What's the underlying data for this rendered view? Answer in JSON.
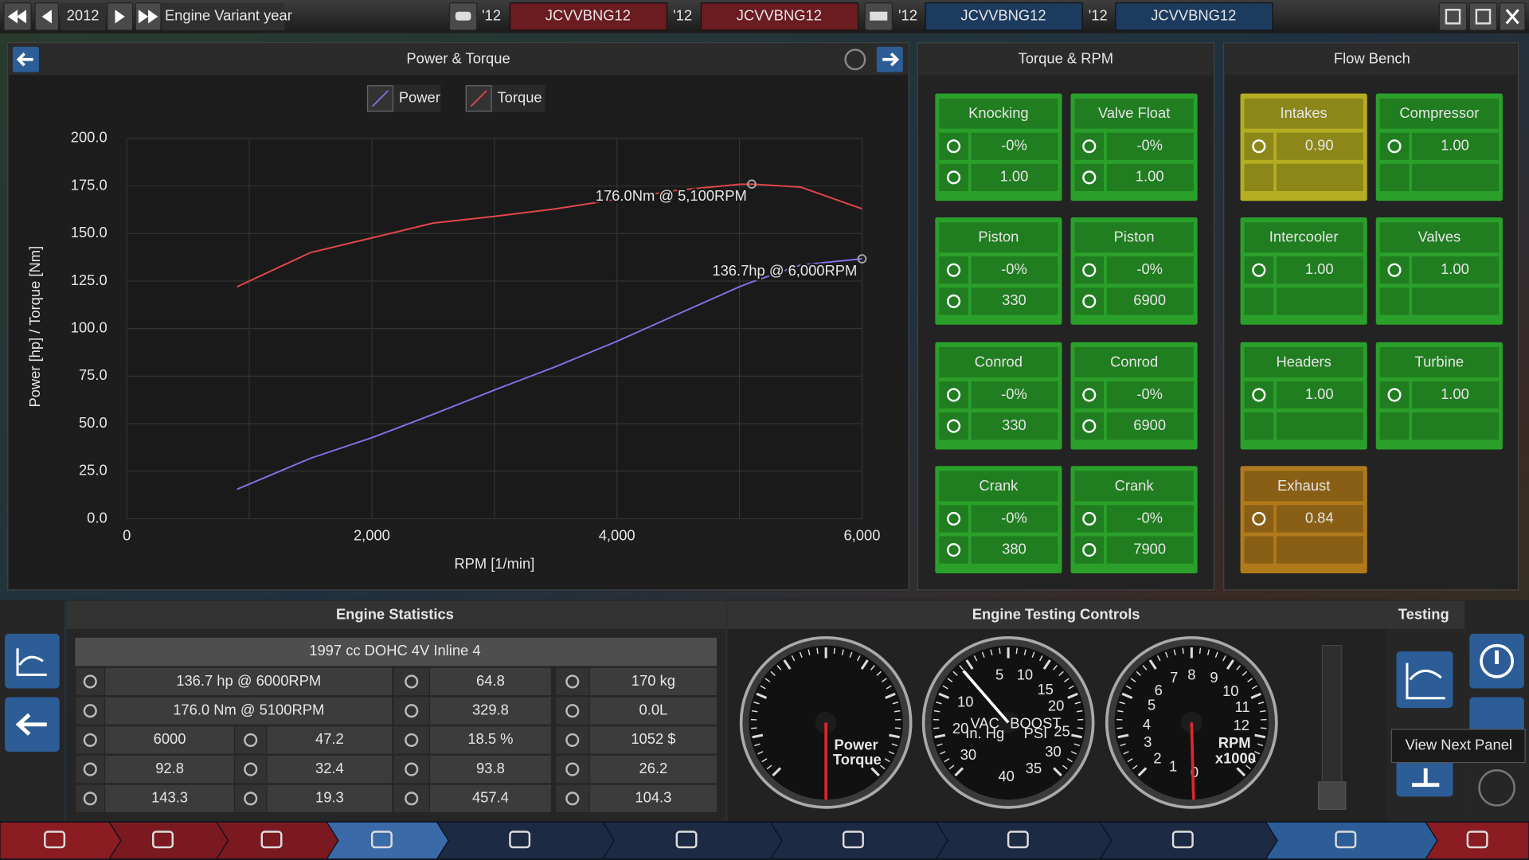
{
  "top_bar": {
    "year": "2012",
    "variant_label": "Engine Variant year",
    "slots": [
      {
        "year": "'12",
        "name": "JCVVBNG12",
        "color": "#6b1c21"
      },
      {
        "year": "'12",
        "name": "JCVVBNG12",
        "color": "#6b1c21"
      },
      {
        "year": "'12",
        "name": "JCVVBNG12",
        "color": "#1d3b5f"
      },
      {
        "year": "'12",
        "name": "JCVVBNG12",
        "color": "#1d3b5f"
      }
    ]
  },
  "chart_data": {
    "type": "line",
    "title": "Power & Torque",
    "x_label": "RPM [1/min]",
    "y_label": "Power [hp] / Torque [Nm]",
    "x": [
      900,
      1500,
      2000,
      2500,
      3000,
      3500,
      4000,
      4500,
      5000,
      5100,
      5500,
      6000
    ],
    "series": [
      {
        "name": "Power",
        "color": "#7d72e6",
        "values": [
          15.5,
          31.8,
          42.6,
          54.9,
          67.7,
          80.0,
          93.3,
          107.7,
          122.0,
          124.5,
          133.5,
          136.7
        ]
      },
      {
        "name": "Torque",
        "color": "#e2464b",
        "values": [
          122.0,
          140.0,
          147.7,
          155.5,
          159.0,
          163.0,
          168.0,
          172.8,
          175.9,
          176.0,
          174.4,
          163.0
        ]
      }
    ],
    "xlim": [
      0,
      6000
    ],
    "ylim": [
      0,
      200
    ],
    "xticks": [
      0,
      {
        "value": 2000,
        "label": "2,000"
      },
      {
        "value": 4000,
        "label": "4,000"
      },
      {
        "value": 6000,
        "label": "6,000"
      }
    ],
    "xminor": [
      1000,
      3000,
      5000
    ],
    "yticks": [
      {
        "value": 0,
        "label": "0.0"
      },
      {
        "value": 25,
        "label": "25.0"
      },
      {
        "value": 50,
        "label": "50.0"
      },
      {
        "value": 75,
        "label": "75.0"
      },
      {
        "value": 100,
        "label": "100.0"
      },
      {
        "value": 125,
        "label": "125.0"
      },
      {
        "value": 150,
        "label": "150.0"
      },
      {
        "value": 175,
        "label": "175.0"
      },
      {
        "value": 200,
        "label": "200.0"
      }
    ],
    "grid": true,
    "annotations": [
      {
        "text": "176.0Nm @ 5,100RPM",
        "x": 5100,
        "y": 176.0,
        "color": "#e2464b"
      },
      {
        "text": "136.7hp @ 6,000RPM",
        "x": 6000,
        "y": 136.7,
        "color": "#8e86ee"
      }
    ]
  },
  "torque_rpm": {
    "title": "Torque & RPM",
    "card_color": "#2aa02a",
    "cards": [
      {
        "title": "Knocking",
        "values": [
          "-0%",
          "1.00"
        ]
      },
      {
        "title": "Valve Float",
        "values": [
          "-0%",
          "1.00"
        ]
      },
      {
        "title": "Piston",
        "values": [
          "-0%",
          "330"
        ]
      },
      {
        "title": "Piston",
        "values": [
          "-0%",
          "6900"
        ]
      },
      {
        "title": "Conrod",
        "values": [
          "-0%",
          "330"
        ]
      },
      {
        "title": "Conrod",
        "values": [
          "-0%",
          "6900"
        ]
      },
      {
        "title": "Crank",
        "values": [
          "-0%",
          "380"
        ]
      },
      {
        "title": "Crank",
        "values": [
          "-0%",
          "7900"
        ]
      }
    ]
  },
  "flow_bench": {
    "title": "Flow Bench",
    "cards": [
      {
        "title": "Intakes",
        "value": "0.90",
        "color": "#b5ad22"
      },
      {
        "title": "Compressor",
        "value": "1.00",
        "color": "#2aa02a"
      },
      {
        "title": "Intercooler",
        "value": "1.00",
        "color": "#2aa02a"
      },
      {
        "title": "Valves",
        "value": "1.00",
        "color": "#2aa02a"
      },
      {
        "title": "Headers",
        "value": "1.00",
        "color": "#2aa02a"
      },
      {
        "title": "Turbine",
        "value": "1.00",
        "color": "#2aa02a"
      },
      {
        "title": "Exhaust",
        "value": "0.84",
        "color": "#b07a1c"
      }
    ]
  },
  "engine_statistics": {
    "title": "Engine Statistics",
    "header": "1997 cc DOHC 4V  Inline 4",
    "rows": [
      [
        "136.7 hp @ 6000RPM",
        "64.8",
        "170 kg"
      ],
      [
        "176.0 Nm @ 5100RPM",
        "329.8",
        "0.0L"
      ],
      [
        "6000",
        "47.2",
        "18.5 %",
        "1052 $"
      ],
      [
        "92.8",
        "32.4",
        "93.8",
        "26.2"
      ],
      [
        "143.3",
        "19.3",
        "457.4",
        "104.3"
      ]
    ]
  },
  "testing_controls": {
    "title": "Engine Testing Controls",
    "power_gauge": {
      "labels": [
        "Power",
        "Torque"
      ]
    },
    "boost_gauge": {
      "boost": [
        "5",
        "10",
        "15",
        "20",
        "25",
        "30",
        "35",
        "40"
      ],
      "vacuum": [
        "10",
        "20",
        "30"
      ],
      "vac_label": [
        "VAC",
        "In. Hg"
      ],
      "boost_label": [
        "BOOST",
        "PSI"
      ]
    },
    "rpm_gauge": {
      "numbers": [
        "1",
        "2",
        "3",
        "4",
        "5",
        "6",
        "7",
        "8",
        "9",
        "10",
        "11",
        "12"
      ],
      "zero": "0",
      "unit": [
        "RPM",
        "x1000"
      ]
    }
  },
  "testing": {
    "title": "Testing",
    "tooltip": "View Next Panel"
  }
}
